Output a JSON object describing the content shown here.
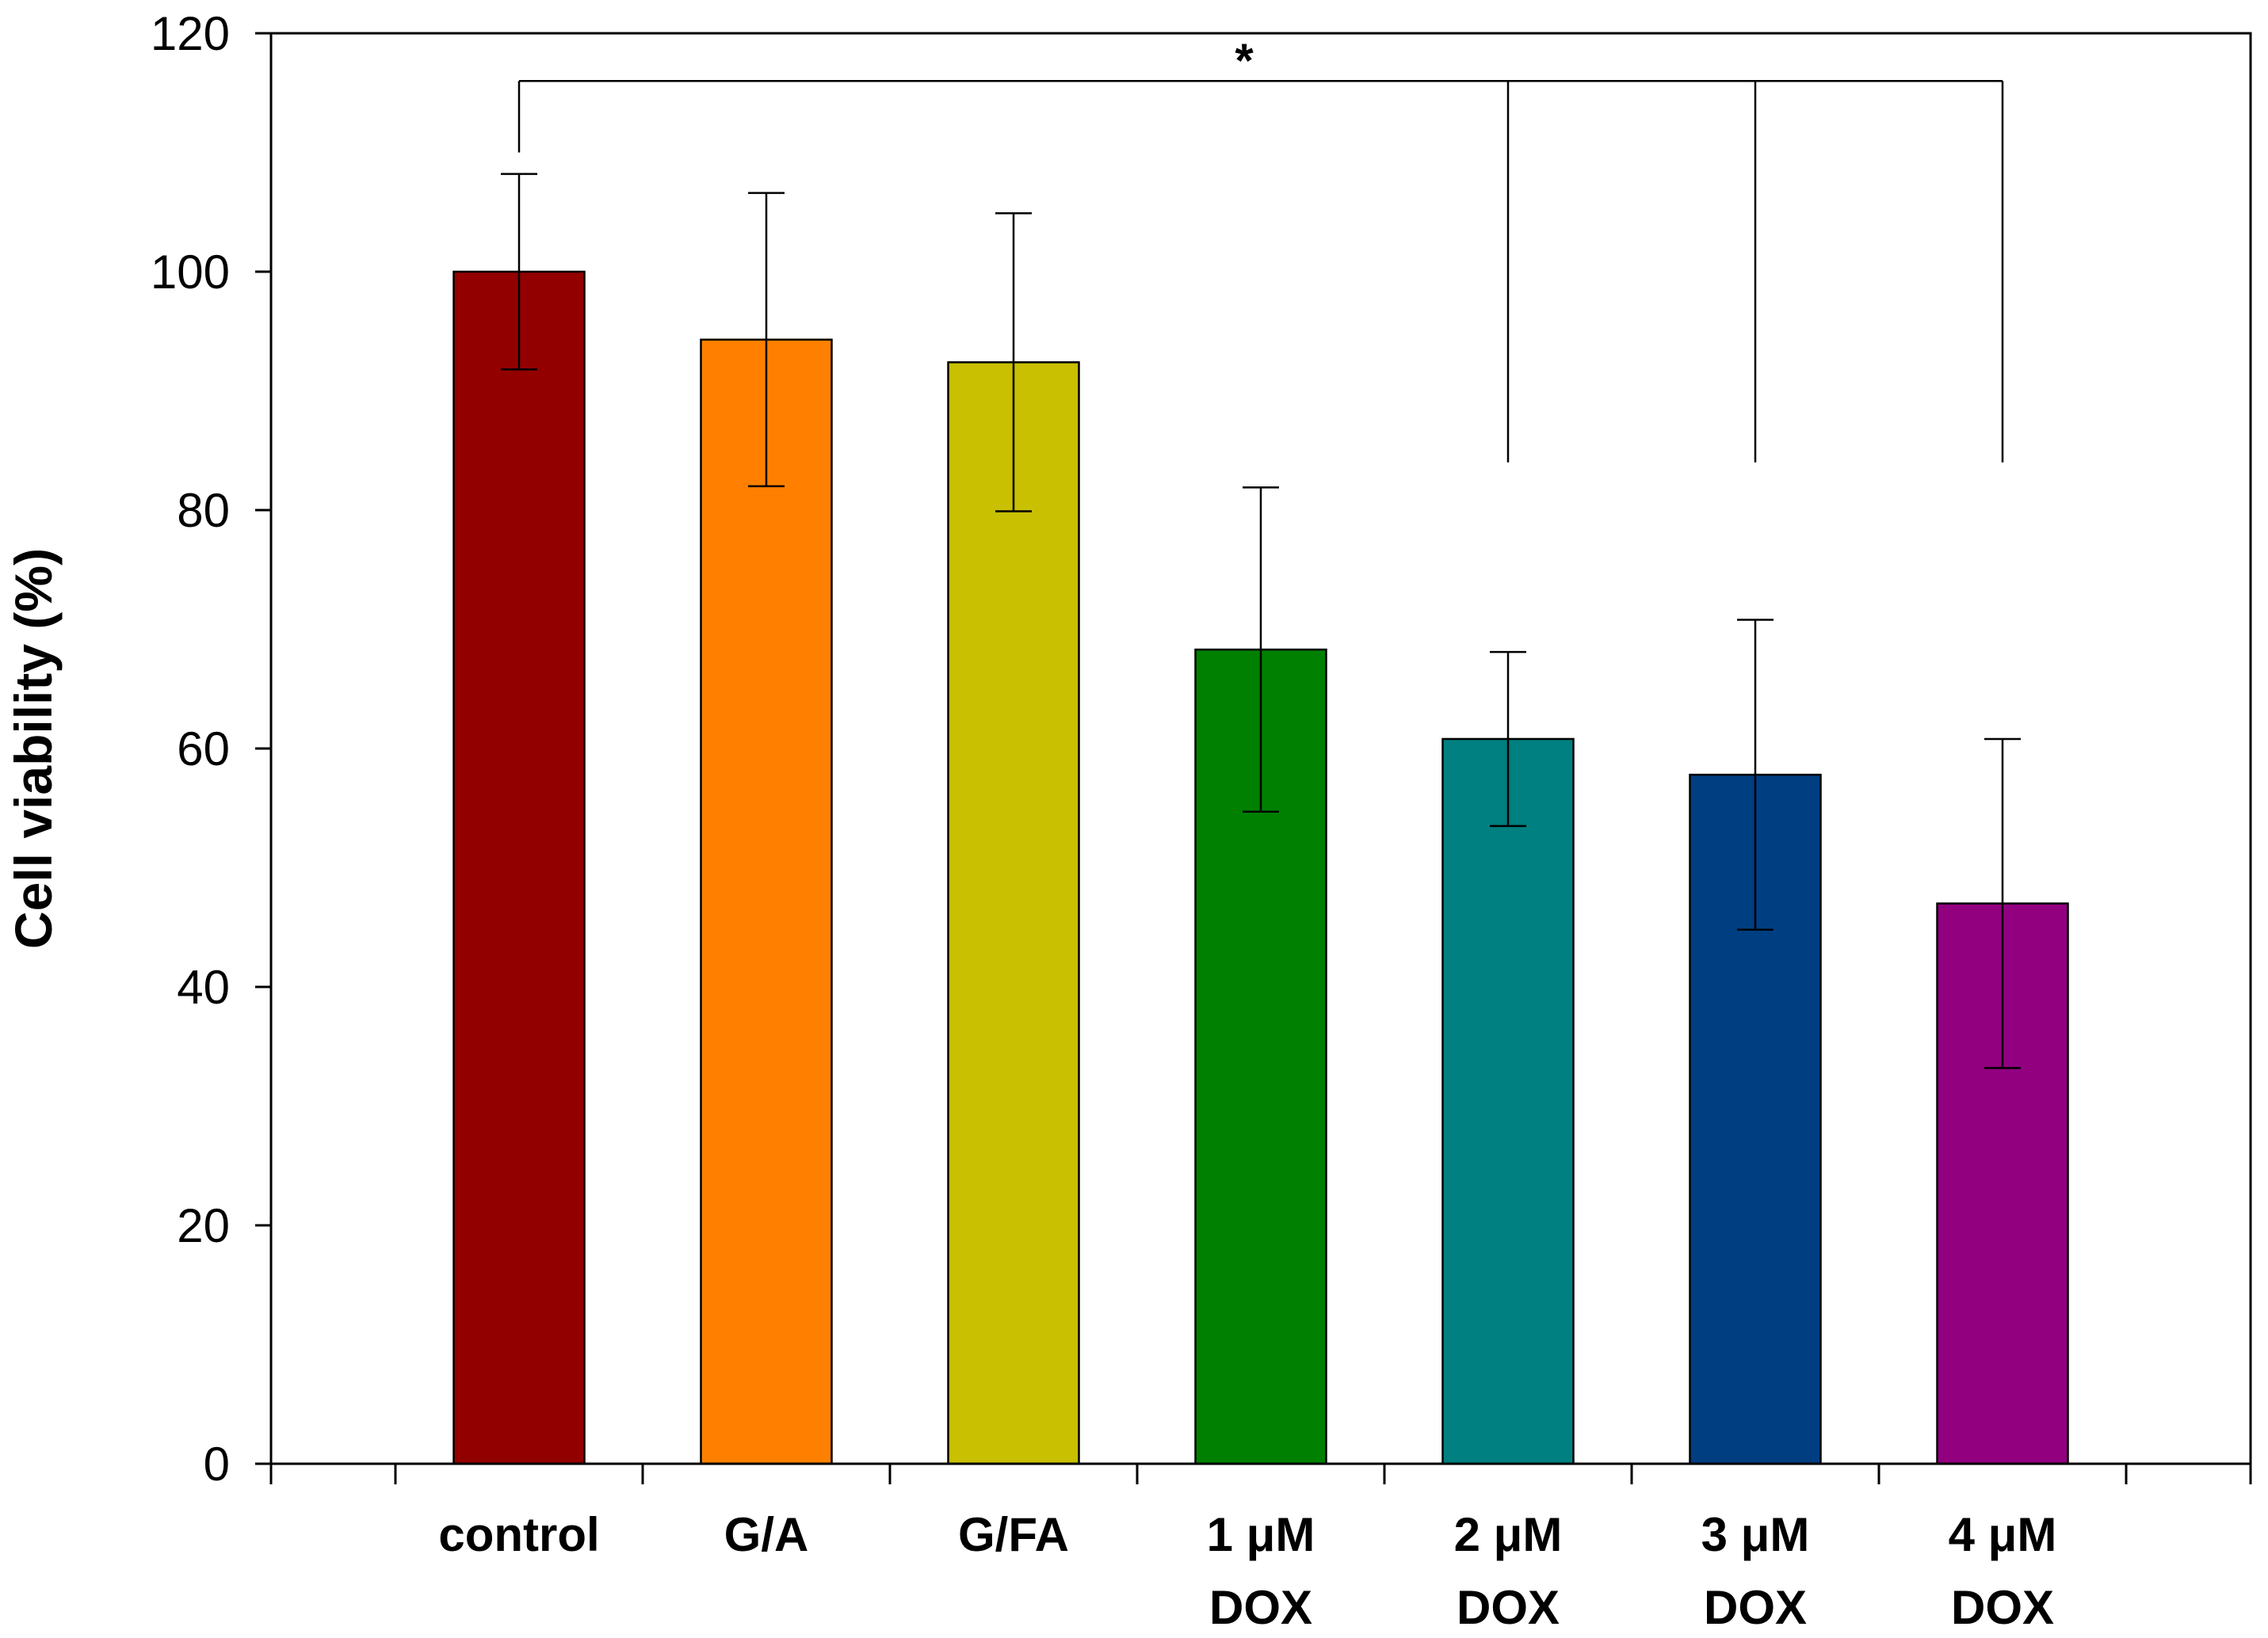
{
  "chart_data": {
    "type": "bar",
    "title": "",
    "xlabel": "",
    "ylabel": "Cell viability (%)",
    "ylim": [
      0,
      120
    ],
    "yticks": [
      0,
      20,
      40,
      60,
      80,
      100,
      120
    ],
    "categories": [
      [
        "control"
      ],
      [
        "G/A"
      ],
      [
        "G/FA"
      ],
      [
        "1 μM",
        "DOX"
      ],
      [
        "2 μM",
        "DOX"
      ],
      [
        "3 μM",
        "DOX"
      ],
      [
        "4 μM",
        "DOX"
      ]
    ],
    "values": [
      100,
      94.3,
      92.4,
      68.3,
      60.8,
      57.8,
      47.0
    ],
    "errors": [
      8.2,
      12.3,
      12.5,
      13.6,
      7.3,
      13.0,
      13.8
    ],
    "colors": [
      "#930000",
      "#FF8000",
      "#C8C000",
      "#008000",
      "#008080",
      "#003E82",
      "#920080"
    ],
    "significance": {
      "symbol": "*",
      "from_category": 0,
      "to_categories": [
        4,
        5,
        6
      ],
      "line_value": 116,
      "drop_start_value": 110,
      "drop_end_value": 84
    },
    "grid": false,
    "legend": "none"
  }
}
